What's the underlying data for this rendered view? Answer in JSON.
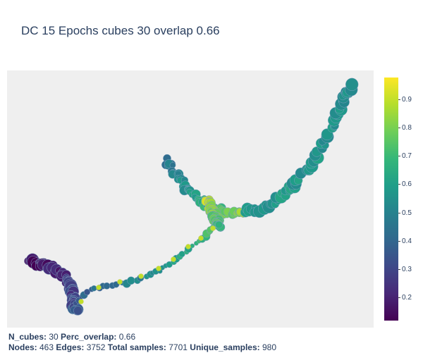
{
  "title": "DC 15 Epochs cubes 30 overlap 0.66",
  "footer": {
    "line1": [
      {
        "label": "N_cubes:",
        "value": " 30 "
      },
      {
        "label": "Perc_overlap:",
        "value": " 0.66"
      }
    ],
    "line2": [
      {
        "label": "Nodes:",
        "value": " 463 "
      },
      {
        "label": "Edges:",
        "value": " 3752 "
      },
      {
        "label": "Total samples:",
        "value": " 7701 "
      },
      {
        "label": "Unique_samples:",
        "value": " 980"
      }
    ]
  },
  "colorbar": {
    "colorscale": "viridis",
    "ticks": [
      "0.2",
      "0.3",
      "0.4",
      "0.5",
      "0.6",
      "0.7",
      "0.8",
      "0.9"
    ],
    "tick_values": [
      0.2,
      0.3,
      0.4,
      0.5,
      0.6,
      0.7,
      0.8,
      0.9
    ],
    "range": [
      0.12,
      0.98
    ],
    "colors": [
      "#440154",
      "#482878",
      "#3e4989",
      "#31688e",
      "#26828e",
      "#1f9e89",
      "#35b779",
      "#6ece58",
      "#b5de2b",
      "#fde725"
    ]
  },
  "chart_data": {
    "type": "scatter",
    "title": "DC 15 Epochs cubes 30 overlap 0.66",
    "description_note": "",
    "branches": [
      {
        "name": "",
        "values_start": 0.12,
        "values_end": 0.35
      },
      {
        "name": "",
        "values_start": 0.35,
        "values_end": 0.75
      },
      {
        "name": "",
        "values_start": 0.8,
        "values_end": 0.9
      },
      {
        "name": "",
        "values_start": 0.45,
        "values_end": 0.85
      },
      {
        "name": "",
        "values_start": 0.9,
        "values_end": 0.7
      },
      {
        "name": "",
        "values_start": 0.6,
        "values_end": 0.55
      }
    ],
    "grid": false,
    "legend": "colorbar-right"
  }
}
